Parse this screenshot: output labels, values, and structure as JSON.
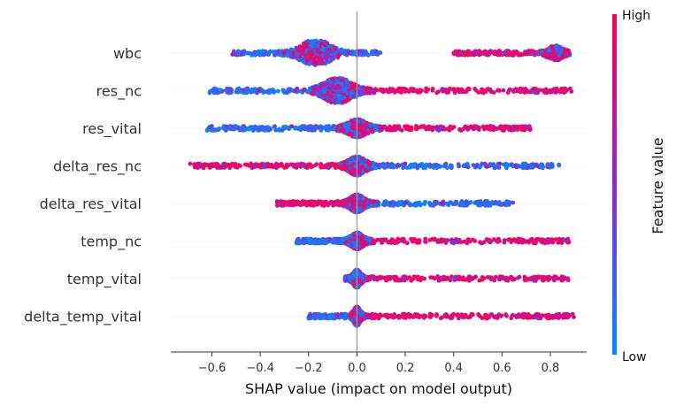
{
  "chart_data": {
    "type": "scatter",
    "subtype": "shap-beeswarm",
    "xlabel": "SHAP value (impact on model output)",
    "xlim": [
      -0.77,
      0.95
    ],
    "x_ticks": [
      {
        "value": -0.6,
        "label": "−0.6"
      },
      {
        "value": -0.4,
        "label": "−0.4"
      },
      {
        "value": -0.2,
        "label": "−0.2"
      },
      {
        "value": 0.0,
        "label": "0.0"
      },
      {
        "value": 0.2,
        "label": "0.2"
      },
      {
        "value": 0.4,
        "label": "0.4"
      },
      {
        "value": 0.6,
        "label": "0.6"
      },
      {
        "value": 0.8,
        "label": "0.8"
      }
    ],
    "colorbar": {
      "label": "Feature value",
      "high_label": "High",
      "low_label": "Low",
      "high_color": "#ff0052",
      "low_color": "#008bfb"
    },
    "features": [
      {
        "name": "wbc",
        "min": -0.52,
        "max": 0.88,
        "low_range": [
          -0.52,
          0.1
        ],
        "high_range": [
          0.4,
          0.88
        ],
        "peaks": [
          -0.17,
          0.82
        ],
        "peak_width": [
          1.0,
          0.45
        ],
        "sigma": [
          0.05,
          0.025
        ]
      },
      {
        "name": "res_nc",
        "min": -0.61,
        "max": 0.89,
        "low_range": [
          -0.61,
          0.05
        ],
        "high_range": [
          0.0,
          0.89
        ],
        "peaks": [
          -0.08
        ],
        "peak_width": [
          0.9
        ],
        "sigma": [
          0.05
        ]
      },
      {
        "name": "res_vital",
        "min": -0.66,
        "max": 0.72,
        "low_range": [
          -0.62,
          0.02
        ],
        "high_range": [
          0.02,
          0.72
        ],
        "peaks": [
          0.0
        ],
        "peak_width": [
          0.55
        ],
        "sigma": [
          0.035
        ]
      },
      {
        "name": "delta_res_nc",
        "min": -0.69,
        "max": 0.84,
        "low_range": [
          0.0,
          0.84
        ],
        "high_range": [
          -0.69,
          0.0
        ],
        "peaks": [
          0.0
        ],
        "peak_width": [
          0.6
        ],
        "sigma": [
          0.03
        ]
      },
      {
        "name": "delta_res_vital",
        "min": -0.42,
        "max": 0.65,
        "low_range": [
          0.0,
          0.65
        ],
        "high_range": [
          -0.33,
          0.0
        ],
        "peaks": [
          0.0
        ],
        "peak_width": [
          0.55
        ],
        "sigma": [
          0.025
        ]
      },
      {
        "name": "temp_nc",
        "min": -0.43,
        "max": 0.88,
        "low_range": [
          -0.25,
          0.0
        ],
        "high_range": [
          0.0,
          0.88
        ],
        "peaks": [
          0.0
        ],
        "peak_width": [
          0.5
        ],
        "sigma": [
          0.022
        ]
      },
      {
        "name": "temp_vital",
        "min": -0.25,
        "max": 0.88,
        "low_range": [
          -0.05,
          0.02
        ],
        "high_range": [
          0.02,
          0.88
        ],
        "peaks": [
          0.0
        ],
        "peak_width": [
          0.55
        ],
        "sigma": [
          0.014
        ]
      },
      {
        "name": "delta_temp_vital",
        "min": -0.2,
        "max": 0.9,
        "low_range": [
          -0.2,
          0.02
        ],
        "high_range": [
          0.02,
          0.9
        ],
        "peaks": [
          0.0
        ],
        "peak_width": [
          0.6
        ],
        "sigma": [
          0.012
        ]
      }
    ]
  }
}
